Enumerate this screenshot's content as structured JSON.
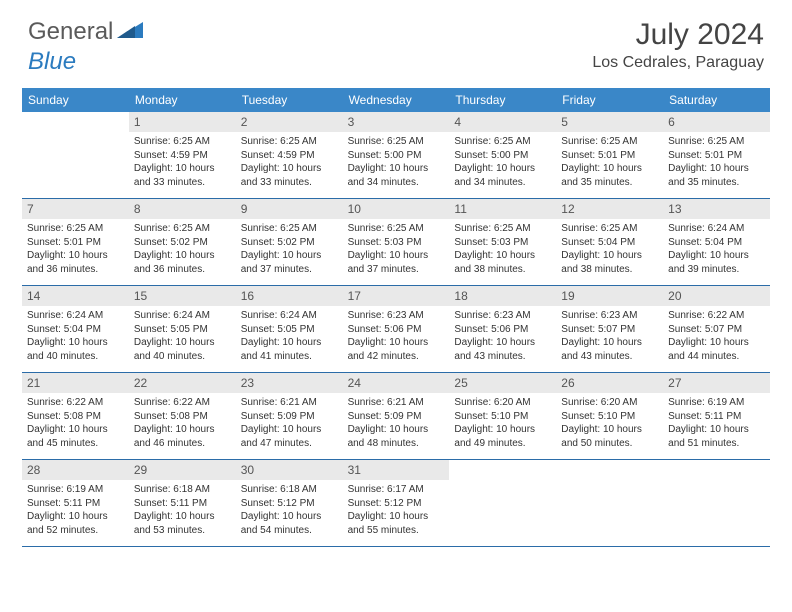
{
  "logo": {
    "part1": "General",
    "part2": "Blue"
  },
  "title": "July 2024",
  "subtitle": "Los Cedrales, Paraguay",
  "colors": {
    "header_bg": "#3a87c8",
    "header_text": "#ffffff",
    "daynum_bg": "#e9e9e9",
    "border": "#2b6ca8",
    "logo_gray": "#5a5a5a",
    "logo_blue": "#2b7bbf"
  },
  "day_names": [
    "Sunday",
    "Monday",
    "Tuesday",
    "Wednesday",
    "Thursday",
    "Friday",
    "Saturday"
  ],
  "weeks": [
    [
      {
        "n": "",
        "sr": "",
        "ss": "",
        "dl": ""
      },
      {
        "n": "1",
        "sr": "Sunrise: 6:25 AM",
        "ss": "Sunset: 4:59 PM",
        "dl": "Daylight: 10 hours and 33 minutes."
      },
      {
        "n": "2",
        "sr": "Sunrise: 6:25 AM",
        "ss": "Sunset: 4:59 PM",
        "dl": "Daylight: 10 hours and 33 minutes."
      },
      {
        "n": "3",
        "sr": "Sunrise: 6:25 AM",
        "ss": "Sunset: 5:00 PM",
        "dl": "Daylight: 10 hours and 34 minutes."
      },
      {
        "n": "4",
        "sr": "Sunrise: 6:25 AM",
        "ss": "Sunset: 5:00 PM",
        "dl": "Daylight: 10 hours and 34 minutes."
      },
      {
        "n": "5",
        "sr": "Sunrise: 6:25 AM",
        "ss": "Sunset: 5:01 PM",
        "dl": "Daylight: 10 hours and 35 minutes."
      },
      {
        "n": "6",
        "sr": "Sunrise: 6:25 AM",
        "ss": "Sunset: 5:01 PM",
        "dl": "Daylight: 10 hours and 35 minutes."
      }
    ],
    [
      {
        "n": "7",
        "sr": "Sunrise: 6:25 AM",
        "ss": "Sunset: 5:01 PM",
        "dl": "Daylight: 10 hours and 36 minutes."
      },
      {
        "n": "8",
        "sr": "Sunrise: 6:25 AM",
        "ss": "Sunset: 5:02 PM",
        "dl": "Daylight: 10 hours and 36 minutes."
      },
      {
        "n": "9",
        "sr": "Sunrise: 6:25 AM",
        "ss": "Sunset: 5:02 PM",
        "dl": "Daylight: 10 hours and 37 minutes."
      },
      {
        "n": "10",
        "sr": "Sunrise: 6:25 AM",
        "ss": "Sunset: 5:03 PM",
        "dl": "Daylight: 10 hours and 37 minutes."
      },
      {
        "n": "11",
        "sr": "Sunrise: 6:25 AM",
        "ss": "Sunset: 5:03 PM",
        "dl": "Daylight: 10 hours and 38 minutes."
      },
      {
        "n": "12",
        "sr": "Sunrise: 6:25 AM",
        "ss": "Sunset: 5:04 PM",
        "dl": "Daylight: 10 hours and 38 minutes."
      },
      {
        "n": "13",
        "sr": "Sunrise: 6:24 AM",
        "ss": "Sunset: 5:04 PM",
        "dl": "Daylight: 10 hours and 39 minutes."
      }
    ],
    [
      {
        "n": "14",
        "sr": "Sunrise: 6:24 AM",
        "ss": "Sunset: 5:04 PM",
        "dl": "Daylight: 10 hours and 40 minutes."
      },
      {
        "n": "15",
        "sr": "Sunrise: 6:24 AM",
        "ss": "Sunset: 5:05 PM",
        "dl": "Daylight: 10 hours and 40 minutes."
      },
      {
        "n": "16",
        "sr": "Sunrise: 6:24 AM",
        "ss": "Sunset: 5:05 PM",
        "dl": "Daylight: 10 hours and 41 minutes."
      },
      {
        "n": "17",
        "sr": "Sunrise: 6:23 AM",
        "ss": "Sunset: 5:06 PM",
        "dl": "Daylight: 10 hours and 42 minutes."
      },
      {
        "n": "18",
        "sr": "Sunrise: 6:23 AM",
        "ss": "Sunset: 5:06 PM",
        "dl": "Daylight: 10 hours and 43 minutes."
      },
      {
        "n": "19",
        "sr": "Sunrise: 6:23 AM",
        "ss": "Sunset: 5:07 PM",
        "dl": "Daylight: 10 hours and 43 minutes."
      },
      {
        "n": "20",
        "sr": "Sunrise: 6:22 AM",
        "ss": "Sunset: 5:07 PM",
        "dl": "Daylight: 10 hours and 44 minutes."
      }
    ],
    [
      {
        "n": "21",
        "sr": "Sunrise: 6:22 AM",
        "ss": "Sunset: 5:08 PM",
        "dl": "Daylight: 10 hours and 45 minutes."
      },
      {
        "n": "22",
        "sr": "Sunrise: 6:22 AM",
        "ss": "Sunset: 5:08 PM",
        "dl": "Daylight: 10 hours and 46 minutes."
      },
      {
        "n": "23",
        "sr": "Sunrise: 6:21 AM",
        "ss": "Sunset: 5:09 PM",
        "dl": "Daylight: 10 hours and 47 minutes."
      },
      {
        "n": "24",
        "sr": "Sunrise: 6:21 AM",
        "ss": "Sunset: 5:09 PM",
        "dl": "Daylight: 10 hours and 48 minutes."
      },
      {
        "n": "25",
        "sr": "Sunrise: 6:20 AM",
        "ss": "Sunset: 5:10 PM",
        "dl": "Daylight: 10 hours and 49 minutes."
      },
      {
        "n": "26",
        "sr": "Sunrise: 6:20 AM",
        "ss": "Sunset: 5:10 PM",
        "dl": "Daylight: 10 hours and 50 minutes."
      },
      {
        "n": "27",
        "sr": "Sunrise: 6:19 AM",
        "ss": "Sunset: 5:11 PM",
        "dl": "Daylight: 10 hours and 51 minutes."
      }
    ],
    [
      {
        "n": "28",
        "sr": "Sunrise: 6:19 AM",
        "ss": "Sunset: 5:11 PM",
        "dl": "Daylight: 10 hours and 52 minutes."
      },
      {
        "n": "29",
        "sr": "Sunrise: 6:18 AM",
        "ss": "Sunset: 5:11 PM",
        "dl": "Daylight: 10 hours and 53 minutes."
      },
      {
        "n": "30",
        "sr": "Sunrise: 6:18 AM",
        "ss": "Sunset: 5:12 PM",
        "dl": "Daylight: 10 hours and 54 minutes."
      },
      {
        "n": "31",
        "sr": "Sunrise: 6:17 AM",
        "ss": "Sunset: 5:12 PM",
        "dl": "Daylight: 10 hours and 55 minutes."
      },
      {
        "n": "",
        "sr": "",
        "ss": "",
        "dl": ""
      },
      {
        "n": "",
        "sr": "",
        "ss": "",
        "dl": ""
      },
      {
        "n": "",
        "sr": "",
        "ss": "",
        "dl": ""
      }
    ]
  ]
}
